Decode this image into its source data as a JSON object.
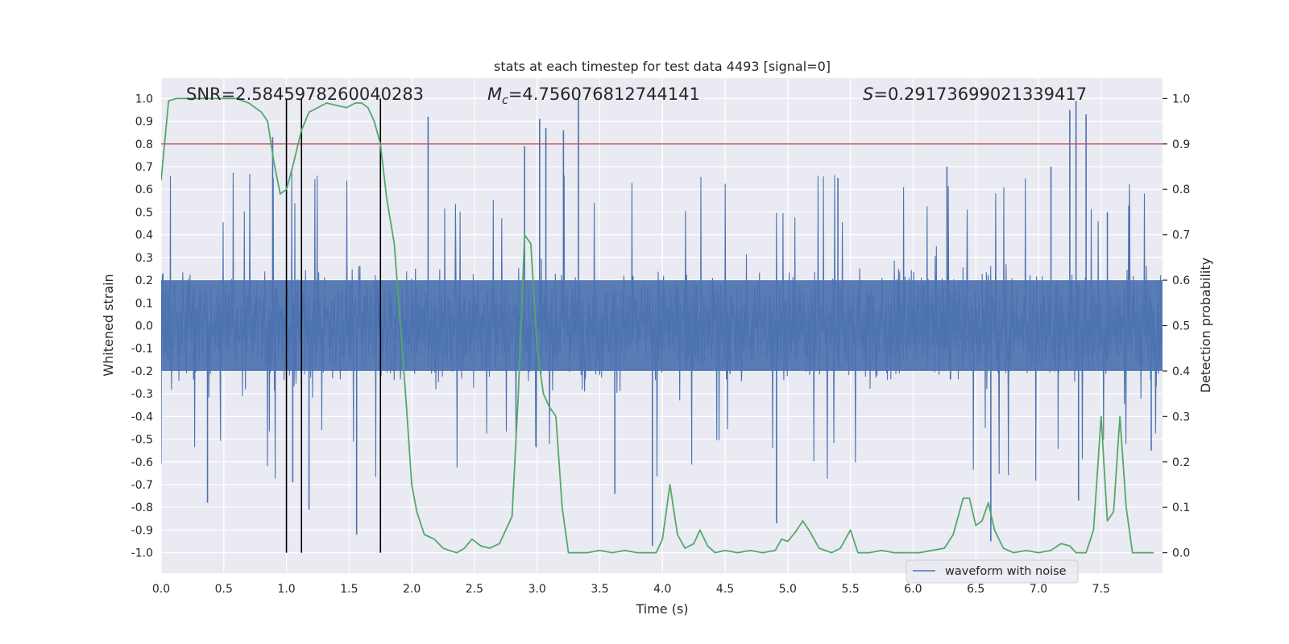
{
  "chart_data": {
    "type": "line",
    "title": "stats at each timestep for test data 4493 [signal=0]",
    "xlabel": "Time (s)",
    "ylabel": "Whitened strain",
    "y2label": "Detection probability",
    "xlim": [
      0.0,
      7.99
    ],
    "ylim": [
      -1.09,
      1.09
    ],
    "y2lim": [
      -0.045,
      1.045
    ],
    "xticks": [
      "0.0",
      "0.5",
      "1.0",
      "1.5",
      "2.0",
      "2.5",
      "3.0",
      "3.5",
      "4.0",
      "4.5",
      "5.0",
      "5.5",
      "6.0",
      "6.5",
      "7.0",
      "7.5"
    ],
    "yticks": [
      "1.0",
      "0.9",
      "0.8",
      "0.7",
      "0.6",
      "0.5",
      "0.4",
      "0.3",
      "0.2",
      "0.1",
      "0.0",
      "-0.1",
      "-0.2",
      "-0.3",
      "-0.4",
      "-0.5",
      "-0.6",
      "-0.7",
      "-0.8",
      "-0.9",
      "-1.0"
    ],
    "y2ticks": [
      "1.0",
      "0.9",
      "0.8",
      "0.7",
      "0.6",
      "0.5",
      "0.4",
      "0.3",
      "0.2",
      "0.1",
      "0.0"
    ],
    "grid": true,
    "background": "#eaeaf2",
    "annotations": {
      "snr": "SNR=2.5845978260040283",
      "mc_prefix": "M",
      "mc_sub": "c",
      "mc_value": "=4.756076812744141",
      "s_prefix": "S",
      "s_value": "=0.29173699021339417"
    },
    "threshold": {
      "y2": 0.9,
      "color": "#c44e52"
    },
    "vlines": [
      1.0,
      1.12,
      1.75
    ],
    "legend": {
      "location": "lower-right",
      "entries": [
        "waveform with noise"
      ]
    },
    "series": [
      {
        "name": "waveform with noise",
        "axis": "left",
        "color": "#4c72b0",
        "envelope": 0.42,
        "spikes": [
          {
            "x": 0.37,
            "y": -0.78
          },
          {
            "x": 0.89,
            "y": 0.83
          },
          {
            "x": 1.05,
            "y": -0.69
          },
          {
            "x": 1.18,
            "y": -0.81
          },
          {
            "x": 1.56,
            "y": -0.92
          },
          {
            "x": 2.13,
            "y": 0.92
          },
          {
            "x": 2.9,
            "y": 0.79
          },
          {
            "x": 3.02,
            "y": 0.91
          },
          {
            "x": 3.07,
            "y": 0.87
          },
          {
            "x": 3.21,
            "y": 0.86
          },
          {
            "x": 3.33,
            "y": 1.0
          },
          {
            "x": 3.62,
            "y": -0.74
          },
          {
            "x": 3.92,
            "y": -0.97
          },
          {
            "x": 4.91,
            "y": -0.87
          },
          {
            "x": 5.4,
            "y": 0.65
          },
          {
            "x": 6.27,
            "y": 0.7
          },
          {
            "x": 6.62,
            "y": -0.95
          },
          {
            "x": 7.1,
            "y": 0.7
          },
          {
            "x": 7.25,
            "y": 0.95
          },
          {
            "x": 7.3,
            "y": 0.99
          },
          {
            "x": 7.32,
            "y": -0.77
          },
          {
            "x": 7.38,
            "y": 0.93
          },
          {
            "x": 7.55,
            "y": 0.5
          },
          {
            "x": 7.9,
            "y": -0.55
          }
        ]
      },
      {
        "name": "",
        "axis": "right",
        "color": "#55a868",
        "x": [
          0.0,
          0.06,
          0.12,
          0.2,
          0.3,
          0.4,
          0.5,
          0.6,
          0.7,
          0.8,
          0.85,
          0.9,
          0.95,
          1.0,
          1.05,
          1.12,
          1.18,
          1.25,
          1.32,
          1.4,
          1.48,
          1.55,
          1.6,
          1.65,
          1.7,
          1.75,
          1.8,
          1.86,
          1.95,
          2.0,
          2.04,
          2.1,
          2.18,
          2.25,
          2.3,
          2.36,
          2.42,
          2.48,
          2.55,
          2.62,
          2.7,
          2.75,
          2.8,
          2.85,
          2.9,
          2.95,
          3.0,
          3.05,
          3.1,
          3.15,
          3.2,
          3.25,
          3.3,
          3.4,
          3.5,
          3.6,
          3.7,
          3.8,
          3.88,
          3.95,
          4.0,
          4.06,
          4.12,
          4.18,
          4.25,
          4.3,
          4.36,
          4.42,
          4.5,
          4.6,
          4.7,
          4.8,
          4.9,
          4.95,
          5.0,
          5.06,
          5.12,
          5.18,
          5.25,
          5.35,
          5.42,
          5.5,
          5.56,
          5.65,
          5.75,
          5.85,
          5.95,
          6.05,
          6.15,
          6.25,
          6.32,
          6.4,
          6.45,
          6.5,
          6.55,
          6.6,
          6.65,
          6.72,
          6.8,
          6.9,
          7.0,
          7.1,
          7.18,
          7.25,
          7.3,
          7.38,
          7.44,
          7.5,
          7.55,
          7.6,
          7.65,
          7.7,
          7.75,
          7.8,
          7.85,
          7.92
        ],
        "y": [
          0.82,
          0.995,
          1.0,
          1.0,
          1.0,
          1.0,
          1.0,
          1.0,
          0.99,
          0.97,
          0.95,
          0.86,
          0.79,
          0.8,
          0.85,
          0.93,
          0.97,
          0.98,
          0.99,
          0.985,
          0.98,
          0.99,
          0.99,
          0.98,
          0.95,
          0.9,
          0.78,
          0.68,
          0.35,
          0.15,
          0.09,
          0.04,
          0.03,
          0.01,
          0.005,
          0.0,
          0.01,
          0.03,
          0.015,
          0.01,
          0.02,
          0.05,
          0.08,
          0.35,
          0.7,
          0.68,
          0.45,
          0.35,
          0.32,
          0.3,
          0.1,
          0.0,
          0.0,
          0.0,
          0.005,
          0.0,
          0.005,
          0.0,
          0.0,
          0.0,
          0.03,
          0.15,
          0.04,
          0.01,
          0.02,
          0.05,
          0.015,
          0.0,
          0.005,
          0.0,
          0.005,
          0.0,
          0.005,
          0.03,
          0.025,
          0.045,
          0.07,
          0.045,
          0.01,
          0.0,
          0.01,
          0.05,
          0.0,
          0.0,
          0.005,
          0.0,
          0.0,
          0.0,
          0.005,
          0.01,
          0.04,
          0.12,
          0.12,
          0.06,
          0.07,
          0.11,
          0.05,
          0.01,
          0.0,
          0.005,
          0.0,
          0.005,
          0.02,
          0.015,
          0.0,
          0.0,
          0.05,
          0.3,
          0.07,
          0.09,
          0.3,
          0.1,
          0.0,
          0.0,
          0.0,
          0.0
        ]
      }
    ]
  }
}
